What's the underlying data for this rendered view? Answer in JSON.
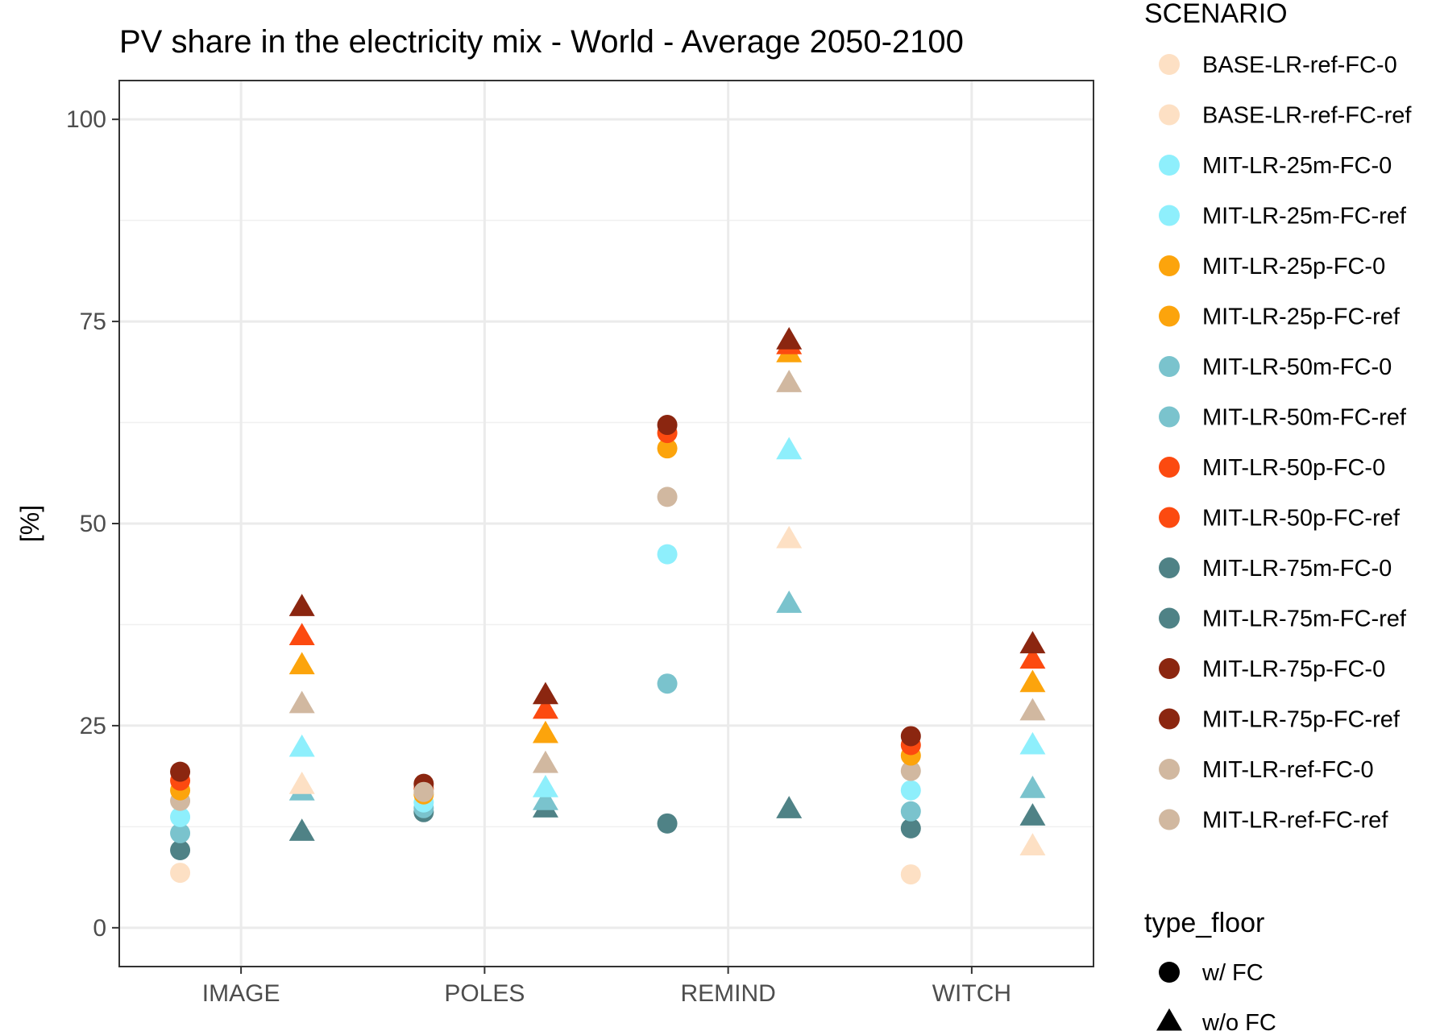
{
  "chart_data": {
    "type": "scatter",
    "title": "PV share in the electricity mix - World - Average 2050-2100",
    "xlabel": "",
    "ylabel": "[%]",
    "categories": [
      "IMAGE",
      "POLES",
      "REMIND",
      "WITCH"
    ],
    "y_ticks": [
      0,
      25,
      50,
      75,
      100
    ],
    "ylim": [
      -4.8,
      104.8
    ],
    "grid": true,
    "legend_placement": "right",
    "scenario_legend": {
      "title": "SCENARIO",
      "entries": [
        {
          "name": "BASE-LR-ref-FC-0",
          "color": "#FDE0C4"
        },
        {
          "name": "BASE-LR-ref-FC-ref",
          "color": "#FDE0C4"
        },
        {
          "name": "MIT-LR-25m-FC-0",
          "color": "#8EEFFC"
        },
        {
          "name": "MIT-LR-25m-FC-ref",
          "color": "#8EEFFC"
        },
        {
          "name": "MIT-LR-25p-FC-0",
          "color": "#FCA40C"
        },
        {
          "name": "MIT-LR-25p-FC-ref",
          "color": "#FCA40C"
        },
        {
          "name": "MIT-LR-50m-FC-0",
          "color": "#7AC3CD"
        },
        {
          "name": "MIT-LR-50m-FC-ref",
          "color": "#7AC3CD"
        },
        {
          "name": "MIT-LR-50p-FC-0",
          "color": "#FC4A10"
        },
        {
          "name": "MIT-LR-50p-FC-ref",
          "color": "#FC4A10"
        },
        {
          "name": "MIT-LR-75m-FC-0",
          "color": "#4F8286"
        },
        {
          "name": "MIT-LR-75m-FC-ref",
          "color": "#4F8286"
        },
        {
          "name": "MIT-LR-75p-FC-0",
          "color": "#8B2610"
        },
        {
          "name": "MIT-LR-75p-FC-ref",
          "color": "#8B2610"
        },
        {
          "name": "MIT-LR-ref-FC-0",
          "color": "#D1B8A0"
        },
        {
          "name": "MIT-LR-ref-FC-ref",
          "color": "#D1B8A0"
        }
      ]
    },
    "shape_legend": {
      "title": "type_floor",
      "entries": [
        {
          "name": "w/ FC",
          "shape": "circle"
        },
        {
          "name": "w/o FC",
          "shape": "triangle"
        }
      ]
    },
    "series": [
      {
        "type_floor": "w/ FC",
        "x_offset": -0.25,
        "points": [
          {
            "x": "IMAGE",
            "y": 6.8,
            "color": "#FDE0C4"
          },
          {
            "x": "IMAGE",
            "y": 9.6,
            "color": "#4F8286"
          },
          {
            "x": "IMAGE",
            "y": 11.7,
            "color": "#7AC3CD"
          },
          {
            "x": "IMAGE",
            "y": 13.7,
            "color": "#8EEFFC"
          },
          {
            "x": "IMAGE",
            "y": 15.7,
            "color": "#D1B8A0"
          },
          {
            "x": "IMAGE",
            "y": 17.0,
            "color": "#FCA40C"
          },
          {
            "x": "IMAGE",
            "y": 18.2,
            "color": "#FC4A10"
          },
          {
            "x": "IMAGE",
            "y": 19.3,
            "color": "#8B2610"
          },
          {
            "x": "POLES",
            "y": 14.3,
            "color": "#4F8286"
          },
          {
            "x": "POLES",
            "y": 14.8,
            "color": "#7AC3CD"
          },
          {
            "x": "POLES",
            "y": 15.5,
            "color": "#8EEFFC"
          },
          {
            "x": "POLES",
            "y": 16.5,
            "color": "#FCA40C"
          },
          {
            "x": "POLES",
            "y": 17.2,
            "color": "#FC4A10"
          },
          {
            "x": "POLES",
            "y": 17.8,
            "color": "#8B2610"
          },
          {
            "x": "POLES",
            "y": 16.8,
            "color": "#D1B8A0"
          },
          {
            "x": "REMIND",
            "y": 12.9,
            "color": "#4F8286"
          },
          {
            "x": "REMIND",
            "y": 30.2,
            "color": "#7AC3CD"
          },
          {
            "x": "REMIND",
            "y": 46.2,
            "color": "#8EEFFC"
          },
          {
            "x": "REMIND",
            "y": 53.3,
            "color": "#D1B8A0"
          },
          {
            "x": "REMIND",
            "y": 59.3,
            "color": "#FCA40C"
          },
          {
            "x": "REMIND",
            "y": 61.2,
            "color": "#FC4A10"
          },
          {
            "x": "REMIND",
            "y": 62.2,
            "color": "#8B2610"
          },
          {
            "x": "WITCH",
            "y": 6.6,
            "color": "#FDE0C4"
          },
          {
            "x": "WITCH",
            "y": 12.3,
            "color": "#4F8286"
          },
          {
            "x": "WITCH",
            "y": 14.4,
            "color": "#7AC3CD"
          },
          {
            "x": "WITCH",
            "y": 17.0,
            "color": "#8EEFFC"
          },
          {
            "x": "WITCH",
            "y": 19.4,
            "color": "#D1B8A0"
          },
          {
            "x": "WITCH",
            "y": 21.3,
            "color": "#FCA40C"
          },
          {
            "x": "WITCH",
            "y": 22.6,
            "color": "#FC4A10"
          },
          {
            "x": "WITCH",
            "y": 23.7,
            "color": "#8B2610"
          }
        ]
      },
      {
        "type_floor": "w/o FC",
        "x_offset": 0.25,
        "points": [
          {
            "x": "IMAGE",
            "y": 11.8,
            "color": "#4F8286"
          },
          {
            "x": "IMAGE",
            "y": 16.8,
            "color": "#7AC3CD"
          },
          {
            "x": "IMAGE",
            "y": 17.6,
            "color": "#FDE0C4"
          },
          {
            "x": "IMAGE",
            "y": 22.2,
            "color": "#8EEFFC"
          },
          {
            "x": "IMAGE",
            "y": 27.6,
            "color": "#D1B8A0"
          },
          {
            "x": "IMAGE",
            "y": 32.4,
            "color": "#FCA40C"
          },
          {
            "x": "IMAGE",
            "y": 36.0,
            "color": "#FC4A10"
          },
          {
            "x": "IMAGE",
            "y": 39.6,
            "color": "#8B2610"
          },
          {
            "x": "POLES",
            "y": 14.7,
            "color": "#4F8286"
          },
          {
            "x": "POLES",
            "y": 15.6,
            "color": "#7AC3CD"
          },
          {
            "x": "POLES",
            "y": 17.2,
            "color": "#8EEFFC"
          },
          {
            "x": "POLES",
            "y": 20.2,
            "color": "#D1B8A0"
          },
          {
            "x": "POLES",
            "y": 23.9,
            "color": "#FCA40C"
          },
          {
            "x": "POLES",
            "y": 26.9,
            "color": "#FC4A10"
          },
          {
            "x": "POLES",
            "y": 28.7,
            "color": "#8B2610"
          },
          {
            "x": "REMIND",
            "y": 14.6,
            "color": "#4F8286"
          },
          {
            "x": "REMIND",
            "y": 40.0,
            "color": "#7AC3CD"
          },
          {
            "x": "REMIND",
            "y": 48.0,
            "color": "#FDE0C4"
          },
          {
            "x": "REMIND",
            "y": 59.0,
            "color": "#8EEFFC"
          },
          {
            "x": "REMIND",
            "y": 67.3,
            "color": "#D1B8A0"
          },
          {
            "x": "REMIND",
            "y": 71.0,
            "color": "#FCA40C"
          },
          {
            "x": "REMIND",
            "y": 72.0,
            "color": "#FC4A10"
          },
          {
            "x": "REMIND",
            "y": 72.6,
            "color": "#8B2610"
          },
          {
            "x": "WITCH",
            "y": 10.0,
            "color": "#FDE0C4"
          },
          {
            "x": "WITCH",
            "y": 13.7,
            "color": "#4F8286"
          },
          {
            "x": "WITCH",
            "y": 17.1,
            "color": "#7AC3CD"
          },
          {
            "x": "WITCH",
            "y": 22.5,
            "color": "#8EEFFC"
          },
          {
            "x": "WITCH",
            "y": 26.7,
            "color": "#D1B8A0"
          },
          {
            "x": "WITCH",
            "y": 30.2,
            "color": "#FCA40C"
          },
          {
            "x": "WITCH",
            "y": 33.1,
            "color": "#FC4A10"
          },
          {
            "x": "WITCH",
            "y": 35.0,
            "color": "#8B2610"
          }
        ]
      }
    ]
  }
}
